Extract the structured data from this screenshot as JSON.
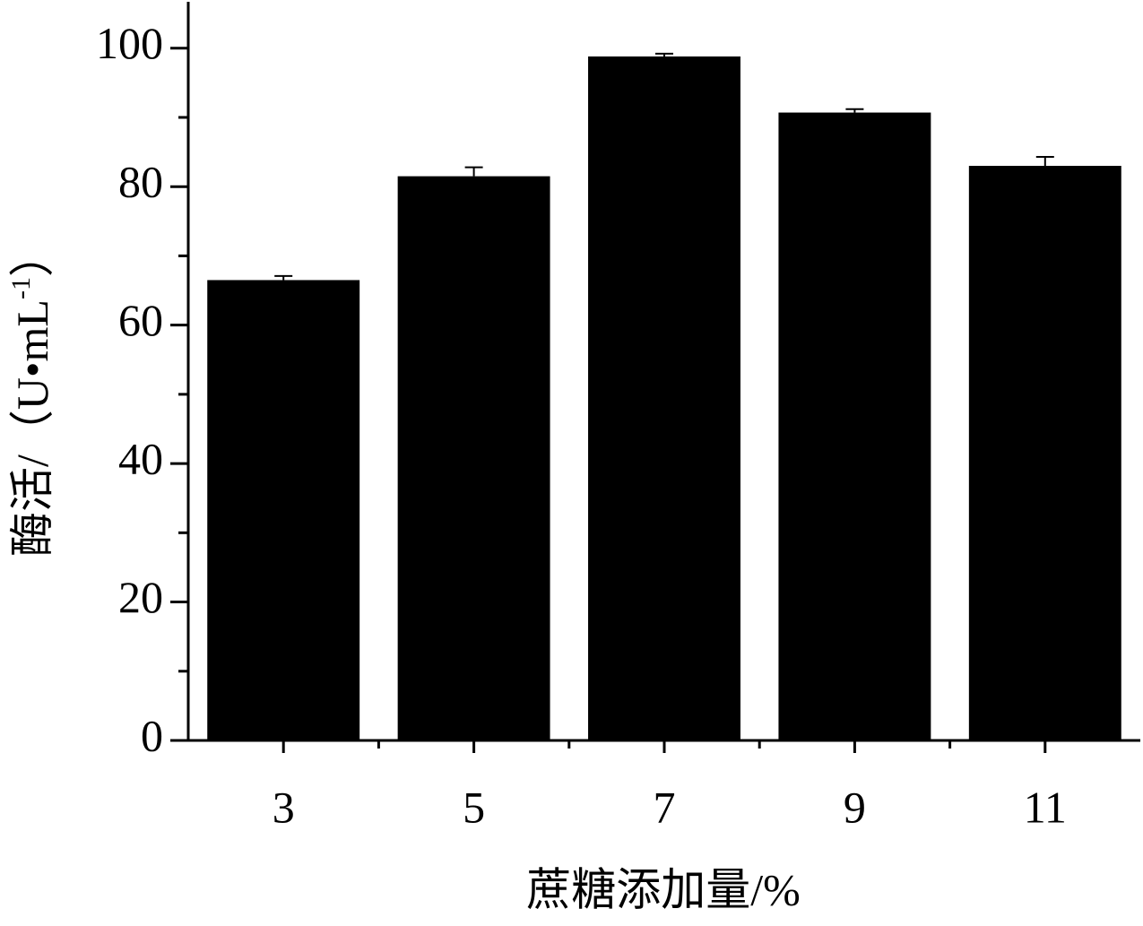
{
  "chart_data": {
    "type": "bar",
    "categories": [
      "3",
      "5",
      "7",
      "9",
      "11"
    ],
    "values": [
      66.5,
      81.5,
      98.8,
      90.7,
      83.0
    ],
    "errors": [
      0.6,
      1.3,
      0.4,
      0.5,
      1.3
    ],
    "color": "#000000",
    "ylim": [
      0,
      106.7
    ],
    "yticks": [
      0,
      20,
      40,
      60,
      80,
      100
    ],
    "yminorticks": [
      10,
      30,
      50,
      70,
      90
    ],
    "xlabel": "蔗糖添加量/%",
    "ylabel": {
      "main": "酶活/（U•mL",
      "sup": "-1",
      "end": "）"
    }
  }
}
